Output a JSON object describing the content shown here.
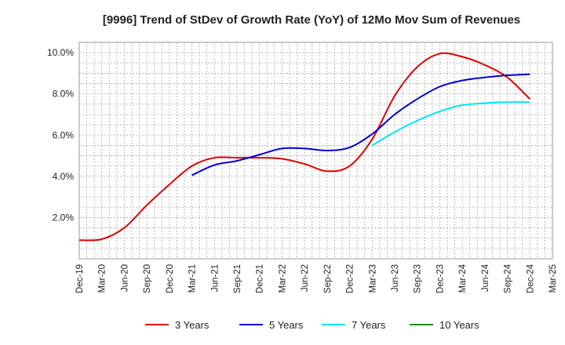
{
  "chart_data": {
    "type": "line",
    "title": "[9996]  Trend of StDev of Growth Rate (YoY) of 12Mo Mov Sum of Revenues",
    "xlabel": "",
    "ylabel": "",
    "ylim": [
      0.0,
      10.5
    ],
    "grid": true,
    "y_ticks": [
      {
        "value": 2.0,
        "label": "2.0%"
      },
      {
        "value": 4.0,
        "label": "4.0%"
      },
      {
        "value": 6.0,
        "label": "6.0%"
      },
      {
        "value": 8.0,
        "label": "8.0%"
      },
      {
        "value": 10.0,
        "label": "10.0%"
      }
    ],
    "x_ticks": [
      "Dec-19",
      "Mar-20",
      "Jun-20",
      "Sep-20",
      "Dec-20",
      "Mar-21",
      "Jun-21",
      "Sep-21",
      "Dec-21",
      "Mar-22",
      "Jun-22",
      "Sep-22",
      "Dec-22",
      "Mar-23",
      "Jun-23",
      "Sep-23",
      "Dec-23",
      "Mar-24",
      "Jun-24",
      "Sep-24",
      "Dec-24",
      "Mar-25"
    ],
    "legend_position": "bottom",
    "series": [
      {
        "name": "3 Years",
        "color": "#dd0000",
        "points": [
          [
            0,
            0.9
          ],
          [
            1,
            0.95
          ],
          [
            2,
            1.5
          ],
          [
            3,
            2.6
          ],
          [
            4,
            3.6
          ],
          [
            5,
            4.5
          ],
          [
            6,
            4.9
          ],
          [
            7,
            4.9
          ],
          [
            8,
            4.9
          ],
          [
            9,
            4.85
          ],
          [
            10,
            4.6
          ],
          [
            11,
            4.25
          ],
          [
            12,
            4.5
          ],
          [
            13,
            5.8
          ],
          [
            14,
            7.9
          ],
          [
            15,
            9.3
          ],
          [
            16,
            9.95
          ],
          [
            17,
            9.8
          ],
          [
            18,
            9.4
          ],
          [
            19,
            8.8
          ],
          [
            20,
            7.75
          ]
        ]
      },
      {
        "name": "5 Years",
        "color": "#0000cc",
        "points": [
          [
            5,
            4.05
          ],
          [
            6,
            4.55
          ],
          [
            7,
            4.75
          ],
          [
            8,
            5.05
          ],
          [
            9,
            5.35
          ],
          [
            10,
            5.35
          ],
          [
            11,
            5.25
          ],
          [
            12,
            5.4
          ],
          [
            13,
            6.05
          ],
          [
            14,
            7.0
          ],
          [
            15,
            7.75
          ],
          [
            16,
            8.35
          ],
          [
            17,
            8.65
          ],
          [
            18,
            8.8
          ],
          [
            19,
            8.9
          ],
          [
            20,
            8.95
          ]
        ]
      },
      {
        "name": "7 Years",
        "color": "#00e5ee",
        "points": [
          [
            13,
            5.5
          ],
          [
            14,
            6.15
          ],
          [
            15,
            6.7
          ],
          [
            16,
            7.15
          ],
          [
            17,
            7.45
          ],
          [
            18,
            7.55
          ],
          [
            19,
            7.6
          ],
          [
            20,
            7.6
          ]
        ]
      },
      {
        "name": "10 Years",
        "color": "#228b22",
        "points": []
      }
    ]
  }
}
